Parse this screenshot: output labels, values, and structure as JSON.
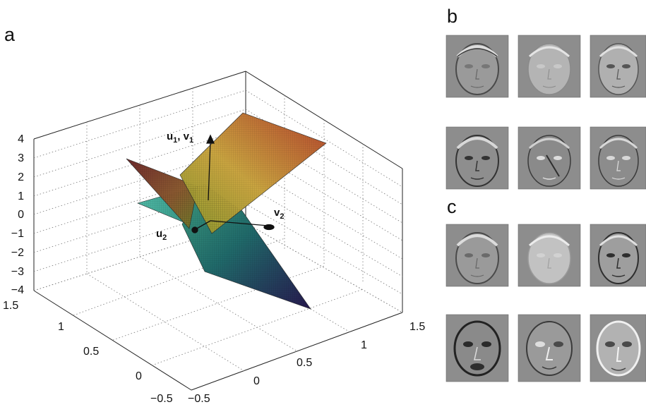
{
  "panels": {
    "a": "a",
    "b": "b",
    "c": "c"
  },
  "chart_data": {
    "type": "surface",
    "z_ticks": [
      "4",
      "3",
      "2",
      "1",
      "0",
      "−1",
      "−2",
      "−3",
      "−4"
    ],
    "left_axis_ticks": [
      "1.5",
      "1",
      "0.5",
      "0",
      "−0.5"
    ],
    "right_axis_ticks": [
      "−0.5",
      "0",
      "0.5",
      "1",
      "1.5"
    ],
    "zlim": [
      -4,
      4
    ],
    "xlim": [
      -0.5,
      1.5
    ],
    "ylim": [
      -0.5,
      1.5
    ],
    "grid": true,
    "vector_labels": {
      "u1v1": {
        "u": "u",
        "us": "1",
        "sep": ", ",
        "v": "v",
        "vs": "1"
      },
      "v2": {
        "v": "v",
        "vs": "2"
      },
      "u2": {
        "u": "u",
        "us": "2"
      }
    }
  },
  "icons": {
    "face": "face-filter-image"
  },
  "colors": {
    "surface_high": "#b5452b",
    "surface_mid": "#b3b038",
    "surface_low": "#2a1f55",
    "surface_cyan": "#3a9c8a"
  }
}
